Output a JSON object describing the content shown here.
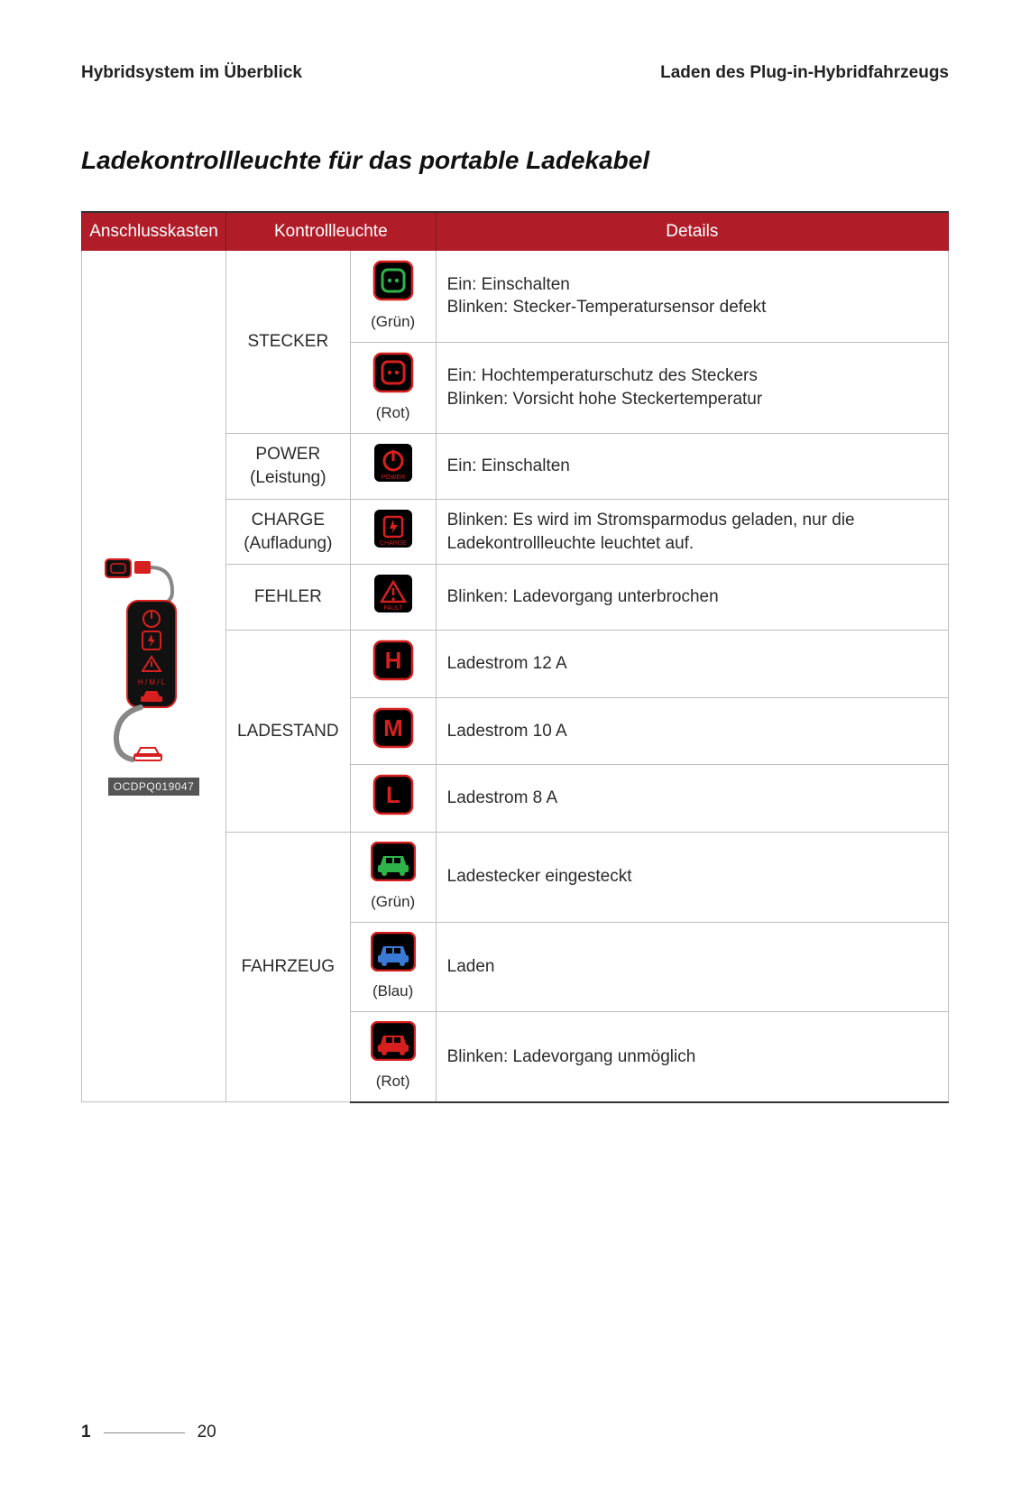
{
  "header": {
    "left": "Hybridsystem im Überblick",
    "right": "Laden des Plug-in-Hybridfahrzeugs"
  },
  "section_title": "Ladekontrollleuchte für das portable Ladekabel",
  "columns": {
    "device": "Anschlusskasten",
    "indicator": "Kontrollleuchte",
    "details": "Details"
  },
  "device_code": "OCDPQ019047",
  "colors": {
    "header_bg": "#b01d29",
    "icon_bg": "#000000",
    "icon_border": "#d6201f",
    "green": "#2db34a",
    "blue": "#3a7ad6",
    "subtext": "#555555"
  },
  "rows": [
    {
      "group": "STECKER",
      "icon": "plug",
      "icon_tint": "green",
      "sub": "(Grün)",
      "details": "Ein: Einschalten\nBlinken: Stecker-Temperatursensor defekt"
    },
    {
      "group": "",
      "icon": "plug",
      "icon_tint": "red",
      "sub": "(Rot)",
      "details": "Ein: Hochtemperaturschutz des Steckers\nBlinken: Vorsicht hohe Steckertemperatur"
    },
    {
      "group": "POWER",
      "group_sub": "(Leistung)",
      "icon": "power",
      "icon_tint": "red",
      "sub": "",
      "details": "Ein: Einschalten"
    },
    {
      "group": "CHARGE",
      "group_sub": "(Aufladung)",
      "icon": "charge",
      "icon_tint": "red",
      "sub": "",
      "details": "Blinken: Es wird im Stromsparmodus geladen, nur die Ladekontrollleuchte leuchtet auf."
    },
    {
      "group": "FEHLER",
      "icon": "fault",
      "icon_tint": "red",
      "sub": "",
      "details": "Blinken: Ladevorgang unterbrochen"
    },
    {
      "group": "LADESTAND",
      "icon": "letter",
      "letter": "H",
      "icon_tint": "red",
      "sub": "",
      "details": "Ladestrom 12 A"
    },
    {
      "group": "",
      "icon": "letter",
      "letter": "M",
      "icon_tint": "red",
      "sub": "",
      "details": "Ladestrom 10 A"
    },
    {
      "group": "",
      "icon": "letter",
      "letter": "L",
      "icon_tint": "red",
      "sub": "",
      "details": "Ladestrom 8 A"
    },
    {
      "group": "FAHRZEUG",
      "icon": "car",
      "icon_tint": "green",
      "sub": "(Grün)",
      "details": "Ladestecker eingesteckt"
    },
    {
      "group": "",
      "icon": "car",
      "icon_tint": "blue",
      "sub": "(Blau)",
      "details": "Laden"
    },
    {
      "group": "",
      "icon": "car",
      "icon_tint": "red",
      "sub": "(Rot)",
      "details": "Blinken: Ladevorgang unmöglich"
    }
  ],
  "footer": {
    "chapter": "1",
    "page": "20"
  }
}
